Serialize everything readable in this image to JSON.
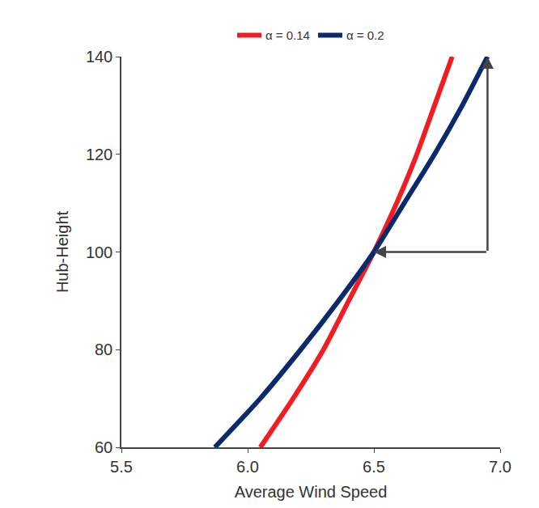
{
  "chart_data": {
    "type": "line",
    "x_label": "Average Wind Speed",
    "y_label": "Hub-Height",
    "series": [
      {
        "name": "α = 0.14",
        "color": "#f01e23",
        "x": [
          6.05,
          6.18,
          6.3,
          6.4,
          6.5,
          6.59,
          6.67,
          6.74,
          6.81
        ],
        "y": [
          60,
          70,
          80,
          90,
          100,
          110,
          120,
          130,
          140
        ]
      },
      {
        "name": "α = 0.2",
        "color": "#0b2a6b",
        "x": [
          5.87,
          6.05,
          6.21,
          6.36,
          6.5,
          6.62,
          6.74,
          6.85,
          6.95
        ],
        "y": [
          60,
          70,
          80,
          90,
          100,
          110,
          120,
          130,
          140
        ]
      }
    ],
    "xlim": [
      5.5,
      7.0
    ],
    "xticks": [
      5.5,
      {
        "value": 6,
        "label": "6.0"
      },
      6.5,
      {
        "value": 7,
        "label": "7.0"
      }
    ],
    "ylim": [
      60,
      140
    ],
    "yticks": [
      60,
      80,
      100,
      120,
      140
    ],
    "arrows": [
      {
        "from": [
          6.95,
          100
        ],
        "to": [
          6.5,
          100
        ]
      },
      {
        "from": [
          6.95,
          100
        ],
        "to": [
          6.95,
          140
        ]
      }
    ],
    "grid": false,
    "legend": "top"
  }
}
